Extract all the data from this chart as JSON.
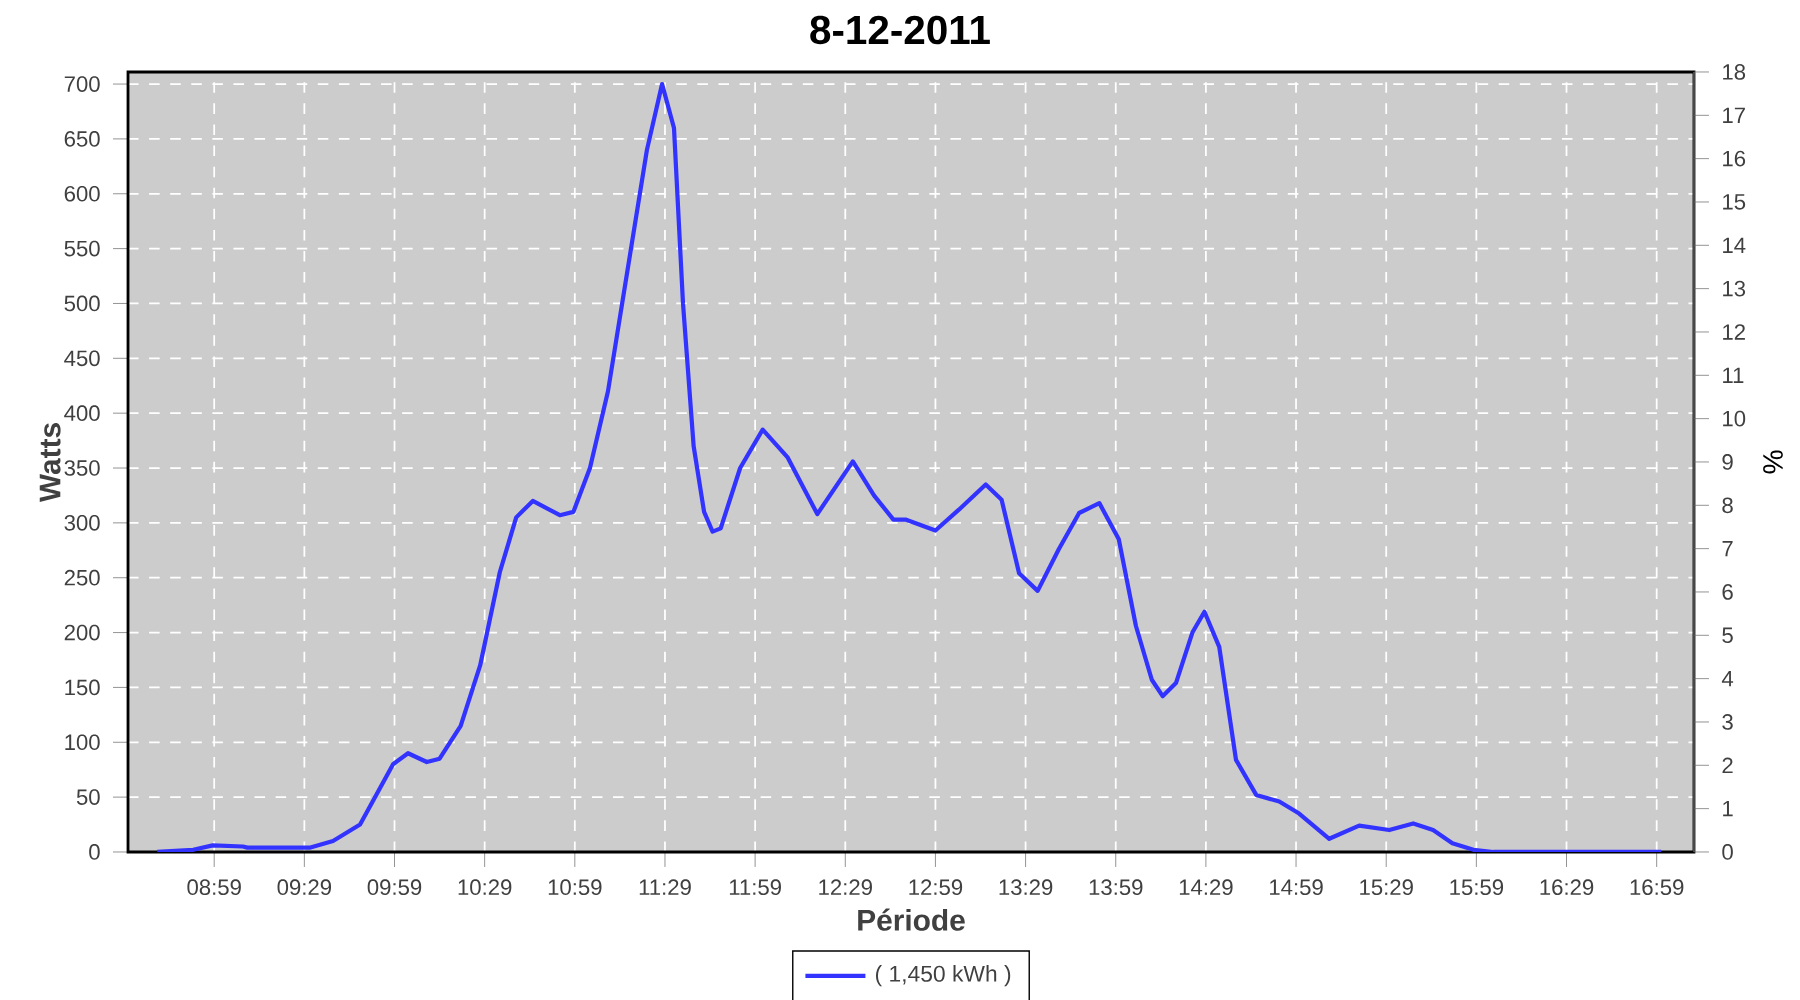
{
  "chart_data": {
    "type": "line",
    "title": "8-12-2011",
    "xlabel": "Période",
    "ylabel": "Watts",
    "y2label": "%",
    "x": [
      8.667,
      8.867,
      8.975,
      9.142,
      9.167,
      9.517,
      9.642,
      9.792,
      9.975,
      10.058,
      10.162,
      10.233,
      10.35,
      10.458,
      10.567,
      10.658,
      10.75,
      10.9,
      10.975,
      11.067,
      11.167,
      11.275,
      11.383,
      11.467,
      11.533,
      11.583,
      11.642,
      11.7,
      11.747,
      11.792,
      11.9,
      12.025,
      12.162,
      12.328,
      12.525,
      12.642,
      12.75,
      12.817,
      12.983,
      13.113,
      13.262,
      13.35,
      13.447,
      13.55,
      13.667,
      13.78,
      13.892,
      14.0,
      14.095,
      14.183,
      14.243,
      14.317,
      14.408,
      14.475,
      14.557,
      14.65,
      14.762,
      14.89,
      15.0,
      15.167,
      15.333,
      15.5,
      15.633,
      15.743,
      15.85,
      15.967,
      16.077,
      17.008
    ],
    "series": [
      {
        "name": "( 1,450 kWh )",
        "color": "#3333ff",
        "values": [
          0,
          2,
          6,
          5,
          4,
          4,
          10,
          25,
          80,
          90,
          82,
          85,
          115,
          170,
          255,
          305,
          320,
          307,
          310,
          350,
          420,
          530,
          640,
          700,
          660,
          500,
          370,
          310,
          292,
          295,
          350,
          385,
          360,
          308,
          356,
          325,
          303,
          303,
          293,
          312,
          335,
          321,
          254,
          238,
          276,
          309,
          318,
          285,
          206,
          157,
          142,
          154,
          200,
          219,
          187,
          84,
          52,
          46,
          35,
          12,
          24,
          20,
          26,
          20,
          8,
          2,
          0,
          0
        ]
      }
    ],
    "xlim": [
      8.505,
      17.19
    ],
    "ylim": [
      0,
      711
    ],
    "y2lim": [
      0,
      18
    ],
    "xticks": [
      {
        "value": 8.983,
        "label": "08:59"
      },
      {
        "value": 9.483,
        "label": "09:29"
      },
      {
        "value": 9.983,
        "label": "09:59"
      },
      {
        "value": 10.483,
        "label": "10:29"
      },
      {
        "value": 10.983,
        "label": "10:59"
      },
      {
        "value": 11.483,
        "label": "11:29"
      },
      {
        "value": 11.983,
        "label": "11:59"
      },
      {
        "value": 12.483,
        "label": "12:29"
      },
      {
        "value": 12.983,
        "label": "12:59"
      },
      {
        "value": 13.483,
        "label": "13:29"
      },
      {
        "value": 13.983,
        "label": "13:59"
      },
      {
        "value": 14.483,
        "label": "14:29"
      },
      {
        "value": 14.983,
        "label": "14:59"
      },
      {
        "value": 15.483,
        "label": "15:29"
      },
      {
        "value": 15.983,
        "label": "15:59"
      },
      {
        "value": 16.483,
        "label": "16:29"
      },
      {
        "value": 16.983,
        "label": "16:59"
      }
    ],
    "yticks": [
      0,
      50,
      100,
      150,
      200,
      250,
      300,
      350,
      400,
      450,
      500,
      550,
      600,
      650,
      700
    ],
    "y2ticks": [
      0,
      1,
      2,
      3,
      4,
      5,
      6,
      7,
      8,
      9,
      10,
      11,
      12,
      13,
      14,
      15,
      16,
      17,
      18
    ],
    "grid": true,
    "legend": "bottom",
    "marker": "none",
    "line_style": "solid"
  }
}
